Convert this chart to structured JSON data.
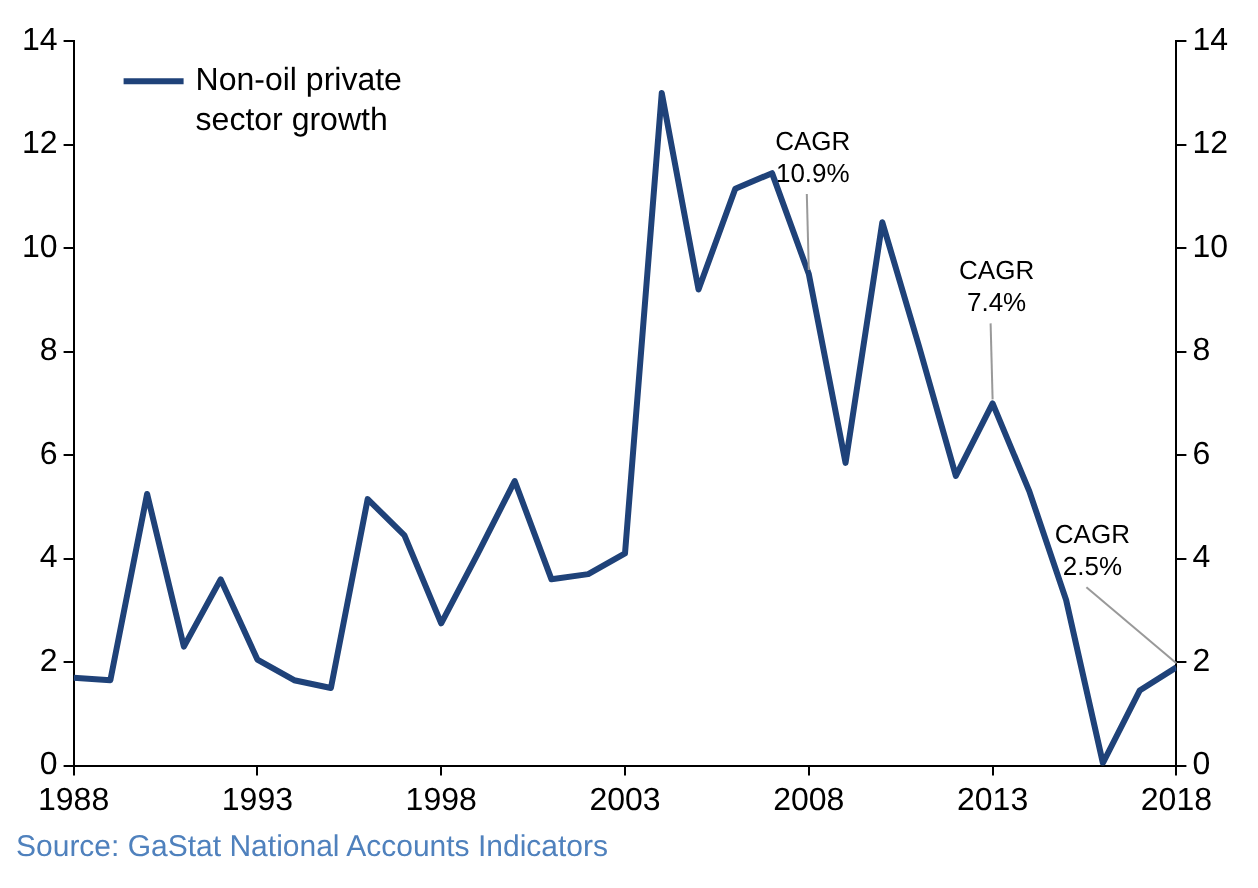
{
  "chart_data": {
    "type": "line",
    "x": [
      1988,
      1989,
      1990,
      1991,
      1992,
      1993,
      1994,
      1995,
      1996,
      1997,
      1998,
      1999,
      2000,
      2001,
      2002,
      2003,
      2004,
      2005,
      2006,
      2007,
      2008,
      2009,
      2010,
      2011,
      2012,
      2013,
      2014,
      2015,
      2016,
      2017,
      2018
    ],
    "series": [
      {
        "name": "Non-oil private sector growth",
        "color": "#1f4279",
        "values": [
          1.7,
          1.65,
          5.25,
          2.3,
          3.6,
          2.05,
          1.65,
          1.5,
          5.15,
          4.45,
          2.75,
          4.1,
          5.5,
          3.6,
          3.7,
          4.1,
          13.0,
          9.2,
          11.15,
          11.45,
          9.5,
          5.85,
          10.5,
          8.1,
          5.6,
          7.0,
          5.3,
          3.2,
          0.05,
          1.45,
          1.9
        ]
      }
    ],
    "xlim": [
      1988,
      2018
    ],
    "xticks": [
      1988,
      1993,
      1998,
      2003,
      2008,
      2013,
      2018
    ],
    "ylim": [
      0,
      14
    ],
    "yticks": [
      0,
      2,
      4,
      6,
      8,
      10,
      12,
      14
    ],
    "y2lim": [
      0,
      14
    ],
    "y2ticks": [
      0,
      2,
      4,
      6,
      8,
      10,
      12,
      14
    ],
    "legend": "top left",
    "grid": false,
    "marker": "none",
    "line_style": "solid",
    "annotations": [
      {
        "text": "CAGR 10.9%",
        "x": 2008,
        "y": 9.5
      },
      {
        "text": "CAGR 7.4%",
        "x": 2013,
        "y": 7.0
      },
      {
        "text": "CAGR 2.5%",
        "x": 2018,
        "y": 1.9
      },
      "Source: GaStat National Accounts Indicators"
    ]
  }
}
